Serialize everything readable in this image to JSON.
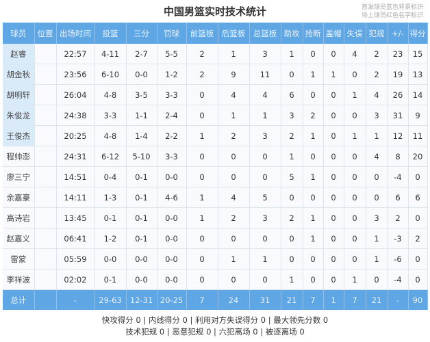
{
  "title": "中国男篮实时技术统计",
  "legend": [
    "首发球员蓝色背景标识",
    "场上球员红色名字标识"
  ],
  "colors": {
    "header": "#5ea6e4",
    "starter_bg": "#d9eaf9"
  },
  "columns": [
    "球员",
    "位置",
    "出场时间",
    "投篮",
    "三分",
    "罚球",
    "前篮板",
    "后篮板",
    "总篮板",
    "助攻",
    "抢断",
    "盖帽",
    "失误",
    "犯规",
    "+/-",
    "得分"
  ],
  "rows": [
    {
      "starter": true,
      "cells": [
        "赵睿",
        "",
        "22:57",
        "4-11",
        "2-7",
        "5-5",
        "2",
        "1",
        "3",
        "1",
        "0",
        "0",
        "4",
        "2",
        "23",
        "15"
      ]
    },
    {
      "starter": true,
      "cells": [
        "胡金秋",
        "",
        "23:56",
        "6-10",
        "0-0",
        "1-2",
        "2",
        "9",
        "11",
        "0",
        "1",
        "1",
        "0",
        "2",
        "19",
        "13"
      ]
    },
    {
      "starter": true,
      "cells": [
        "胡明轩",
        "",
        "26:04",
        "4-8",
        "3-5",
        "3-3",
        "0",
        "4",
        "4",
        "6",
        "0",
        "0",
        "1",
        "4",
        "26",
        "14"
      ]
    },
    {
      "starter": true,
      "cells": [
        "朱俊龙",
        "",
        "24:38",
        "3-3",
        "1-1",
        "2-4",
        "0",
        "1",
        "1",
        "3",
        "2",
        "0",
        "0",
        "3",
        "31",
        "9"
      ]
    },
    {
      "starter": true,
      "cells": [
        "王俊杰",
        "",
        "20:25",
        "4-8",
        "1-4",
        "2-2",
        "1",
        "2",
        "3",
        "2",
        "1",
        "0",
        "1",
        "1",
        "12",
        "11"
      ]
    },
    {
      "starter": false,
      "cells": [
        "程帅澎",
        "",
        "24:31",
        "6-12",
        "5-10",
        "3-3",
        "0",
        "0",
        "0",
        "1",
        "0",
        "0",
        "0",
        "4",
        "8",
        "20"
      ]
    },
    {
      "starter": false,
      "cells": [
        "廖三宁",
        "",
        "14:51",
        "0-4",
        "0-1",
        "0-0",
        "0",
        "0",
        "0",
        "5",
        "1",
        "0",
        "0",
        "0",
        "-4",
        "0"
      ]
    },
    {
      "starter": false,
      "cells": [
        "余嘉豪",
        "",
        "14:11",
        "1-3",
        "0-1",
        "4-6",
        "1",
        "4",
        "5",
        "0",
        "0",
        "0",
        "0",
        "0",
        "6",
        "6"
      ]
    },
    {
      "starter": false,
      "cells": [
        "高诗岩",
        "",
        "13:45",
        "0-1",
        "0-1",
        "0-0",
        "1",
        "2",
        "3",
        "2",
        "1",
        "0",
        "0",
        "3",
        "2",
        "0"
      ]
    },
    {
      "starter": false,
      "cells": [
        "赵嘉义",
        "",
        "06:41",
        "1-2",
        "0-1",
        "0-0",
        "0",
        "0",
        "0",
        "0",
        "1",
        "0",
        "0",
        "1",
        "-3",
        "2"
      ]
    },
    {
      "starter": false,
      "cells": [
        "雷蒙",
        "",
        "05:59",
        "0-0",
        "0-0",
        "0-0",
        "0",
        "1",
        "1",
        "0",
        "0",
        "0",
        "0",
        "1",
        "-6",
        "0"
      ]
    },
    {
      "starter": false,
      "cells": [
        "李祥波",
        "",
        "02:02",
        "0-1",
        "0-0",
        "0-0",
        "0",
        "0",
        "0",
        "1",
        "0",
        "0",
        "1",
        "0",
        "-4",
        "0"
      ]
    }
  ],
  "total": [
    "总计",
    "",
    "-",
    "29-63",
    "12-31",
    "20-25",
    "7",
    "24",
    "31",
    "21",
    "7",
    "1",
    "7",
    "21",
    "-",
    "90"
  ],
  "footer": [
    "快攻得分 0 | 内线得分 0 | 利用对方失误得分 0 | 最大领先分数 0",
    "技术犯规 0 | 恶意犯规 0 | 六犯离场 0 | 被逐离场 0"
  ]
}
